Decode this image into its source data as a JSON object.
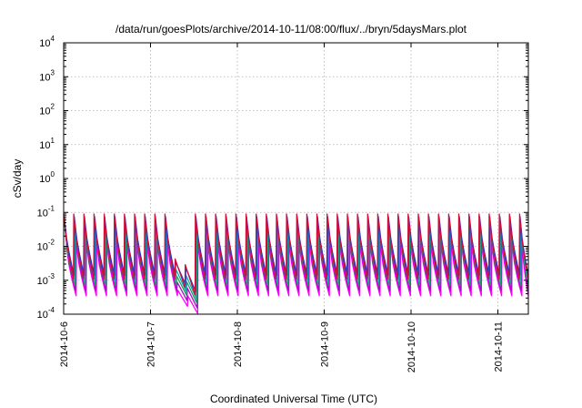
{
  "chart_data": {
    "type": "line",
    "title": "/data/run/goesPlots/archive/2014-10-11/08:00/flux/../bryn/5daysMars.plot",
    "xlabel": "Coordinated Universal Time (UTC)",
    "ylabel": "cSv/day",
    "yscale": "log",
    "ylim": [
      0.0001,
      10000
    ],
    "xlim": [
      "2014-10-06",
      "2014-10-11 08:00"
    ],
    "grid": true,
    "x_ticks": [
      "2014-10-6",
      "2014-10-7",
      "2014-10-8",
      "2014-10-9",
      "2014-10-10",
      "2014-10-11"
    ],
    "y_ticks": [
      {
        "base": "10",
        "exp": "-4"
      },
      {
        "base": "10",
        "exp": "-3"
      },
      {
        "base": "10",
        "exp": "-2"
      },
      {
        "base": "10",
        "exp": "-1"
      },
      {
        "base": "10",
        "exp": "0"
      },
      {
        "base": "10",
        "exp": "1"
      },
      {
        "base": "10",
        "exp": "2"
      },
      {
        "base": "10",
        "exp": "3"
      },
      {
        "base": "10",
        "exp": "4"
      }
    ],
    "sawtooth_period_hours": 2.8,
    "series": [
      {
        "color": "#d0103a",
        "peak": 0.09,
        "floor": 0.0011
      },
      {
        "color": "#2030d8",
        "peak": 0.075,
        "floor": 0.0014
      },
      {
        "color": "#10b0b0",
        "peak": 0.045,
        "floor": 0.0009
      },
      {
        "color": "#20a060",
        "peak": 0.03,
        "floor": 0.0007
      },
      {
        "color": "#a010c0",
        "peak": 0.02,
        "floor": 0.0005
      },
      {
        "color": "#ff00ff",
        "peak": 0.012,
        "floor": 0.00035
      }
    ]
  }
}
